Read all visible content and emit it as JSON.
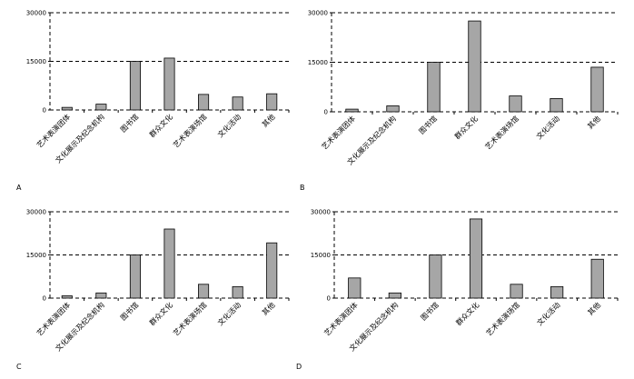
{
  "chart_data": [
    {
      "type": "bar",
      "panel_label": "A",
      "categories": [
        "艺术表演团体",
        "文化展示及纪念机构",
        "图书馆",
        "群众文化",
        "艺术表演场馆",
        "文化活动",
        "其他"
      ],
      "values": [
        800,
        1800,
        15000,
        16000,
        4800,
        4000,
        5000
      ],
      "yticks": [
        "0",
        "15000",
        "30000"
      ],
      "ylim": [
        0,
        30000
      ],
      "grid": "dashed horizontal at 15000 and 30000"
    },
    {
      "type": "bar",
      "panel_label": "B",
      "categories": [
        "艺术表演团体",
        "文化展示及纪念机构",
        "图书馆",
        "群众文化",
        "艺术表演场馆",
        "文化活动",
        "其他"
      ],
      "values": [
        800,
        1800,
        15000,
        27500,
        4800,
        4000,
        13500
      ],
      "yticks": [
        "0",
        "15000",
        "30000"
      ],
      "ylim": [
        0,
        30000
      ],
      "grid": "dashed horizontal at 15000 and 30000"
    },
    {
      "type": "bar",
      "panel_label": "C",
      "categories": [
        "艺术表演团体",
        "文化展示及纪念机构",
        "图书馆",
        "群众文化",
        "艺术表演场馆",
        "文化活动",
        "其他"
      ],
      "values": [
        800,
        1800,
        15000,
        24000,
        4800,
        4000,
        19200
      ],
      "yticks": [
        "0",
        "15000",
        "30000"
      ],
      "ylim": [
        0,
        30000
      ],
      "grid": "dashed horizontal at 15000 and 30000"
    },
    {
      "type": "bar",
      "panel_label": "D",
      "categories": [
        "艺术表演团体",
        "文化展示及纪念机构",
        "图书馆",
        "群众文化",
        "艺术表演场馆",
        "文化活动",
        "其他"
      ],
      "values": [
        7000,
        1800,
        15000,
        27500,
        4800,
        4000,
        13500
      ],
      "yticks": [
        "0",
        "15000",
        "30000"
      ],
      "ylim": [
        0,
        30000
      ],
      "grid": "dashed horizontal at 15000 and 30000"
    }
  ]
}
